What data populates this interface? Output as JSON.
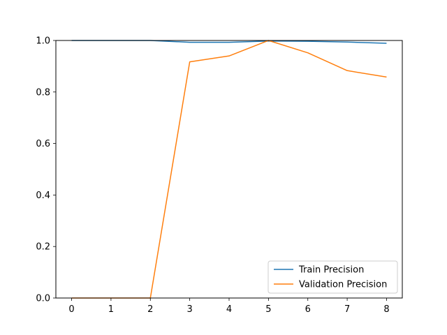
{
  "chart_data": {
    "type": "line",
    "title": "",
    "xlabel": "",
    "ylabel": "",
    "x": [
      0,
      1,
      2,
      3,
      4,
      5,
      6,
      7,
      8
    ],
    "xlim": [
      -0.4,
      8.4
    ],
    "ylim": [
      0,
      1.0
    ],
    "x_ticks": [
      "0",
      "1",
      "2",
      "3",
      "4",
      "5",
      "6",
      "7",
      "8"
    ],
    "y_ticks": [
      "0.0",
      "0.2",
      "0.4",
      "0.6",
      "0.8",
      "1.0"
    ],
    "y_tick_values": [
      0,
      0.2,
      0.4,
      0.6,
      0.8,
      1.0
    ],
    "grid": false,
    "legend_position": "bottom-right",
    "series": [
      {
        "name": "Train Precision",
        "color": "#1f77b4",
        "values": [
          1.0,
          1.0,
          1.0,
          0.993,
          0.993,
          0.998,
          0.997,
          0.994,
          0.989
        ]
      },
      {
        "name": "Validation Precision",
        "color": "#ff7f0e",
        "values": [
          0.0,
          0.0,
          0.0,
          0.917,
          0.94,
          1.0,
          0.952,
          0.883,
          0.858
        ]
      }
    ]
  }
}
